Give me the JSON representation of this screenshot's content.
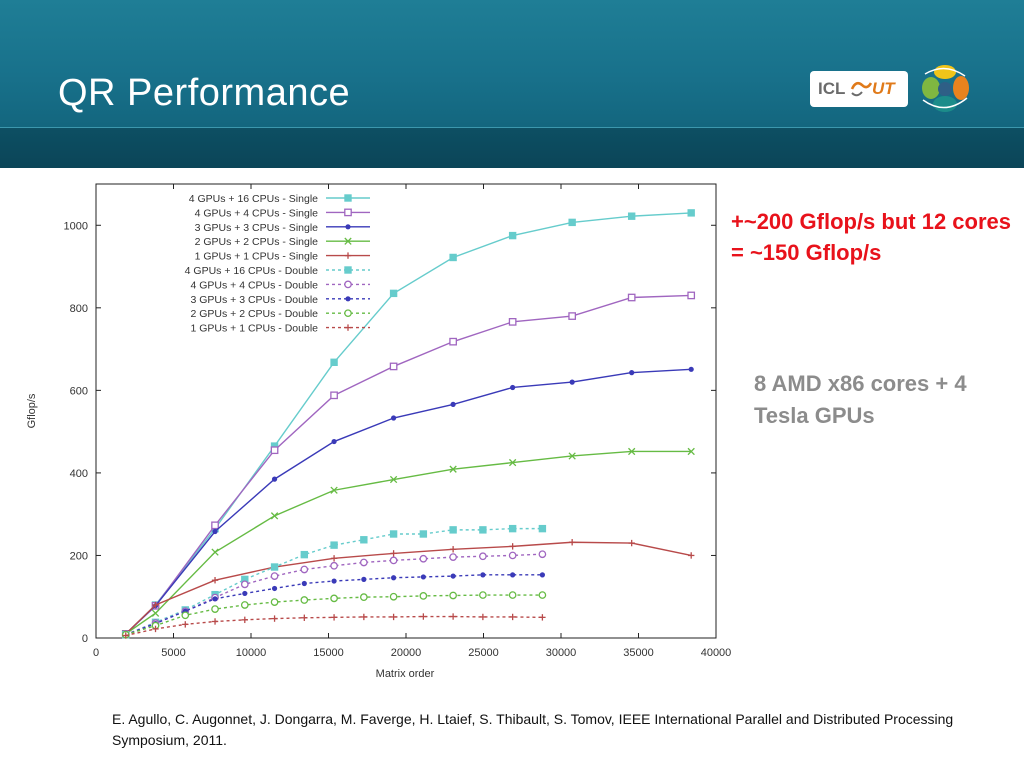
{
  "slide": {
    "title": "QR Performance",
    "logo_text": "ICL",
    "logo_accent": "UT",
    "note_red": "+~200 Gflop/s but 12 cores = ~150 Gflop/s",
    "note_gray": "8 AMD x86 cores + 4 Tesla GPUs",
    "citation": "E. Agullo, C. Augonnet, J. Dongarra, M. Faverge, H. Ltaief, S. Thibault, S. Tomov, IEEE International Parallel and Distributed Processing Symposium, 2011."
  },
  "chart_data": {
    "type": "line",
    "title": "",
    "xlabel": "Matrix order",
    "ylabel": "Gflop/s",
    "xlim": [
      0,
      40000
    ],
    "ylim": [
      0,
      1100
    ],
    "xticks": [
      0,
      5000,
      10000,
      15000,
      20000,
      25000,
      30000,
      35000,
      40000
    ],
    "yticks": [
      0,
      200,
      400,
      600,
      800,
      1000
    ],
    "grid": false,
    "legend_position": "top-left",
    "series": [
      {
        "name": "4 GPUs + 16 CPUs - Single",
        "color": "#66cccc",
        "dashed": false,
        "marker": "square-filled",
        "x": [
          1920,
          3840,
          7680,
          11520,
          15360,
          19200,
          23040,
          26880,
          30720,
          34560,
          38400
        ],
        "y": [
          10,
          80,
          265,
          465,
          668,
          835,
          922,
          975,
          1007,
          1022,
          1030
        ]
      },
      {
        "name": "4 GPUs + 4 CPUs - Single",
        "color": "#a066c0",
        "dashed": false,
        "marker": "square-open",
        "x": [
          1920,
          3840,
          7680,
          11520,
          15360,
          19200,
          23040,
          26880,
          30720,
          34560,
          38400
        ],
        "y": [
          10,
          78,
          273,
          455,
          588,
          658,
          718,
          766,
          780,
          825,
          830
        ]
      },
      {
        "name": "3 GPUs + 3 CPUs - Single",
        "color": "#3a3ab8",
        "dashed": false,
        "marker": "dot",
        "x": [
          1920,
          3840,
          7680,
          11520,
          15360,
          19200,
          23040,
          26880,
          30720,
          34560,
          38400
        ],
        "y": [
          10,
          78,
          258,
          385,
          476,
          533,
          566,
          607,
          620,
          643,
          651
        ]
      },
      {
        "name": "2 GPUs + 2 CPUs - Single",
        "color": "#66bb44",
        "dashed": false,
        "marker": "x",
        "x": [
          1920,
          3840,
          7680,
          11520,
          15360,
          19200,
          23040,
          26880,
          30720,
          34560,
          38400
        ],
        "y": [
          10,
          60,
          208,
          296,
          358,
          384,
          409,
          425,
          441,
          452,
          452
        ]
      },
      {
        "name": "1 GPUs + 1 CPUs - Single",
        "color": "#b84a4a",
        "dashed": false,
        "marker": "plus",
        "x": [
          1920,
          3840,
          7680,
          11520,
          15360,
          19200,
          23040,
          26880,
          30720,
          34560,
          38400
        ],
        "y": [
          10,
          80,
          140,
          172,
          193,
          205,
          215,
          222,
          232,
          230,
          200
        ]
      },
      {
        "name": "4 GPUs + 16 CPUs - Double",
        "color": "#66cccc",
        "dashed": true,
        "marker": "square-filled",
        "x": [
          1920,
          3840,
          5760,
          7680,
          9600,
          11520,
          13440,
          15360,
          17280,
          19200,
          21120,
          23040,
          24960,
          26880,
          28800
        ],
        "y": [
          8,
          38,
          68,
          105,
          142,
          172,
          202,
          225,
          238,
          252,
          252,
          262,
          262,
          265,
          265
        ]
      },
      {
        "name": "4 GPUs + 4 CPUs - Double",
        "color": "#a066c0",
        "dashed": true,
        "marker": "circle-open",
        "x": [
          1920,
          3840,
          5760,
          7680,
          9600,
          11520,
          13440,
          15360,
          17280,
          19200,
          21120,
          23040,
          24960,
          26880,
          28800
        ],
        "y": [
          8,
          36,
          65,
          98,
          130,
          150,
          166,
          175,
          183,
          188,
          192,
          196,
          198,
          200,
          203
        ]
      },
      {
        "name": "3 GPUs + 3 CPUs - Double",
        "color": "#3a3ab8",
        "dashed": true,
        "marker": "dot",
        "x": [
          1920,
          3840,
          5760,
          7680,
          9600,
          11520,
          13440,
          15360,
          17280,
          19200,
          21120,
          23040,
          24960,
          26880,
          28800
        ],
        "y": [
          8,
          35,
          65,
          95,
          108,
          120,
          132,
          138,
          142,
          146,
          148,
          150,
          153,
          153,
          153
        ]
      },
      {
        "name": "2 GPUs + 2 CPUs - Double",
        "color": "#66bb44",
        "dashed": true,
        "marker": "circle-open",
        "x": [
          1920,
          3840,
          5760,
          7680,
          9600,
          11520,
          13440,
          15360,
          17280,
          19200,
          21120,
          23040,
          24960,
          26880,
          28800
        ],
        "y": [
          8,
          30,
          55,
          70,
          80,
          87,
          92,
          96,
          99,
          100,
          102,
          103,
          104,
          104,
          104
        ]
      },
      {
        "name": "1 GPUs + 1 CPUs - Double",
        "color": "#b84a4a",
        "dashed": true,
        "marker": "plus",
        "x": [
          1920,
          3840,
          5760,
          7680,
          9600,
          11520,
          13440,
          15360,
          17280,
          19200,
          21120,
          23040,
          24960,
          26880,
          28800
        ],
        "y": [
          6,
          22,
          33,
          40,
          44,
          47,
          49,
          50,
          51,
          51,
          52,
          52,
          51,
          51,
          50
        ]
      }
    ]
  }
}
